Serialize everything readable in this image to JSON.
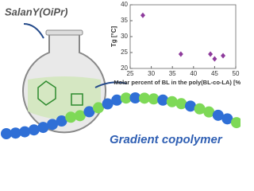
{
  "labels": {
    "catalyst": "SalanY(OiPr)",
    "product": "Gradient copolymer"
  },
  "chart_data": {
    "type": "scatter",
    "x_label": "Molar percent of BL in the poly(BL-co-LA) [%]",
    "y_label": "Tg [°C]",
    "series": [
      {
        "name": "Tg",
        "color": "#8e3b9c",
        "x": [
          28,
          37,
          44,
          45,
          47
        ],
        "values": [
          36.7,
          24.5,
          24.5,
          23,
          24
        ]
      }
    ],
    "xlim": [
      25,
      50
    ],
    "xticks": [
      25,
      30,
      35,
      40,
      45,
      50
    ],
    "ylim": [
      20,
      40
    ],
    "yticks": [
      20,
      25,
      30,
      35,
      40
    ],
    "grid": false
  }
}
